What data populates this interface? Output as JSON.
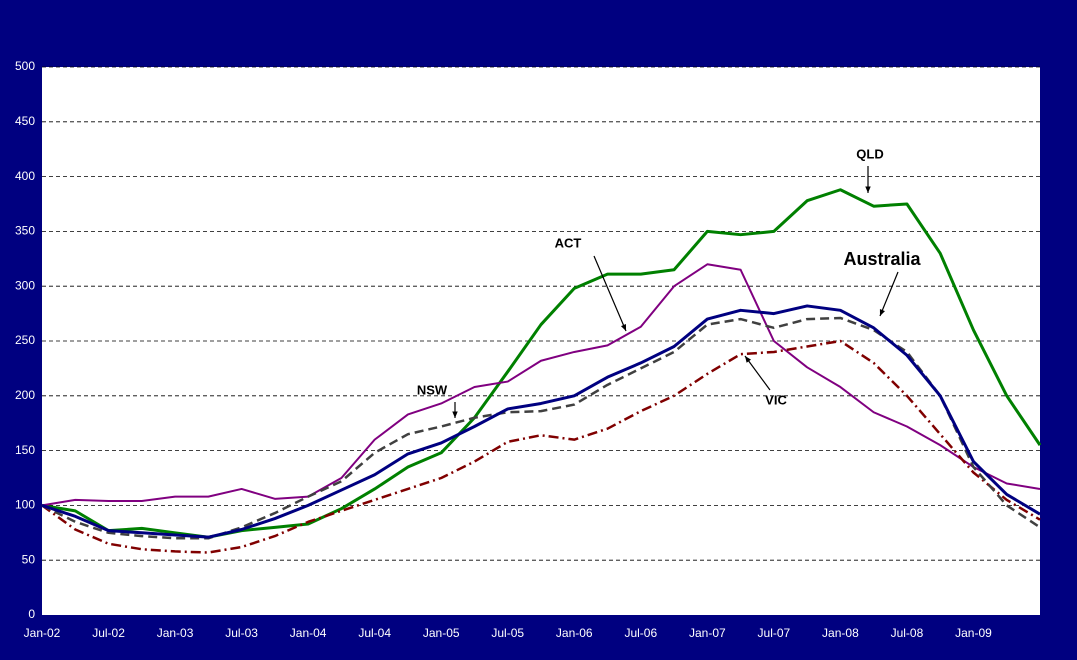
{
  "chart_data": {
    "type": "line",
    "categories": [
      "Jan-02",
      null,
      "Jul-02",
      null,
      "Jan-03",
      null,
      "Jul-03",
      null,
      "Jan-04",
      null,
      "Jul-04",
      null,
      "Jan-05",
      null,
      "Jul-05",
      null,
      "Jan-06",
      null,
      "Jul-06",
      null,
      "Jan-07",
      null,
      "Jul-07",
      null,
      "Jan-08",
      null,
      "Jul-08",
      null,
      "Jan-09",
      null,
      null
    ],
    "series": [
      {
        "name": "QLD",
        "color": "#008000",
        "dash": "solid",
        "width": 3,
        "values": [
          100,
          95,
          77,
          79,
          75,
          71,
          77,
          80,
          83,
          97,
          115,
          135,
          148,
          180,
          222,
          265,
          298,
          311,
          311,
          315,
          350,
          347,
          350,
          378,
          388,
          373,
          375,
          330,
          260,
          200,
          155
        ]
      },
      {
        "name": "ACT",
        "color": "#800080",
        "dash": "solid",
        "width": 2,
        "values": [
          100,
          105,
          104,
          104,
          108,
          108,
          115,
          106,
          108,
          125,
          160,
          183,
          193,
          208,
          213,
          232,
          240,
          246,
          263,
          300,
          320,
          315,
          250,
          226,
          208,
          185,
          172,
          155,
          135,
          120,
          115
        ]
      },
      {
        "name": "VIC",
        "color": "#800000",
        "dash": "dashdot",
        "width": 2.5,
        "values": [
          100,
          78,
          65,
          60,
          58,
          57,
          62,
          72,
          85,
          95,
          105,
          115,
          125,
          140,
          158,
          164,
          160,
          170,
          186,
          200,
          220,
          238,
          240,
          245,
          250,
          230,
          200,
          165,
          130,
          105,
          87
        ]
      },
      {
        "name": "NSW",
        "color": "#404040",
        "dash": "dashed",
        "width": 2.5,
        "values": [
          100,
          85,
          75,
          72,
          70,
          70,
          80,
          93,
          108,
          122,
          148,
          165,
          172,
          180,
          185,
          186,
          192,
          210,
          225,
          240,
          265,
          270,
          262,
          270,
          271,
          260,
          240,
          200,
          135,
          100,
          80
        ]
      },
      {
        "name": "Australia",
        "color": "#000080",
        "dash": "solid",
        "width": 3,
        "values": [
          100,
          90,
          77,
          75,
          73,
          71,
          78,
          88,
          100,
          114,
          128,
          147,
          157,
          172,
          188,
          193,
          200,
          217,
          230,
          245,
          270,
          278,
          275,
          282,
          278,
          262,
          237,
          200,
          140,
          110,
          92
        ]
      }
    ],
    "annotations": [
      "QLD",
      "ACT",
      "Australia",
      "NSW",
      "VIC"
    ],
    "ylim": [
      0,
      500
    ],
    "yticks": [
      0,
      50,
      100,
      150,
      200,
      250,
      300,
      350,
      400,
      450,
      500
    ],
    "grid": true
  }
}
